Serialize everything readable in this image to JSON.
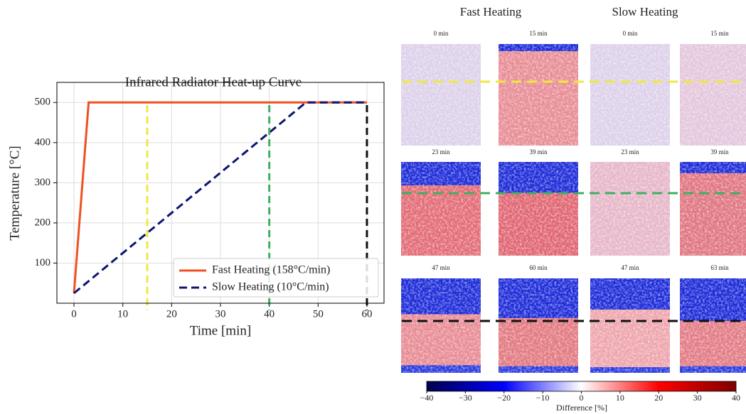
{
  "chart_data": [
    {
      "type": "line",
      "title": "Infrared Radiator Heat-up Curve",
      "xlabel": "Time [min]",
      "ylabel": "Temperature [°C]",
      "xlim": [
        -3.5,
        63.5
      ],
      "ylim": [
        0,
        550
      ],
      "xticks": [
        0,
        10,
        20,
        30,
        40,
        50,
        60
      ],
      "yticks": [
        100,
        200,
        300,
        400,
        500
      ],
      "grid": true,
      "legend": "lower right",
      "series": [
        {
          "name": "Fast Heating (158°C/min)",
          "color": "#f05020",
          "dash": "solid",
          "x": [
            0,
            3,
            60
          ],
          "values": [
            25,
            500,
            500
          ]
        },
        {
          "name": "Slow Heating (10°C/min)",
          "color": "#0c1470",
          "dash": "dashed",
          "x": [
            0,
            47.5,
            60
          ],
          "values": [
            25,
            500,
            500
          ]
        }
      ],
      "vlines": [
        {
          "x": 15,
          "color": "#f0e840"
        },
        {
          "x": 40,
          "color": "#3cb060"
        },
        {
          "x": 60,
          "color": "#111111"
        }
      ]
    },
    {
      "type": "colorbar",
      "xlabel": "Difference [%]",
      "xlim": [
        -40,
        40
      ],
      "xticks": [
        {
          "value": -40,
          "label": "−40"
        },
        {
          "value": -30,
          "label": "−30"
        },
        {
          "value": -20,
          "label": "−20"
        },
        {
          "value": -10,
          "label": "−10"
        },
        0,
        10,
        20,
        30,
        40
      ]
    }
  ],
  "panels": {
    "columns": [
      "Fast Heating",
      "Slow Heating"
    ],
    "rows": [
      [
        "0 min",
        "15 min",
        "0 min",
        "15 min"
      ],
      [
        "23 min",
        "39 min",
        "23 min",
        "39 min"
      ],
      [
        "47 min",
        "60 min",
        "47 min",
        "63 min"
      ]
    ]
  }
}
